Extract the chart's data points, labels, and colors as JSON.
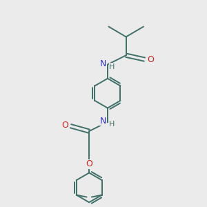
{
  "bg_color": "#ebebeb",
  "bond_color": "#3d7068",
  "N_color": "#3333cc",
  "O_color": "#cc2222",
  "H_color": "#3d7068",
  "bond_width": 1.4,
  "font_size": 8.5,
  "fig_width": 3.0,
  "fig_height": 3.0,
  "dpi": 100,
  "xlim": [
    0,
    10
  ],
  "ylim": [
    0,
    10
  ]
}
